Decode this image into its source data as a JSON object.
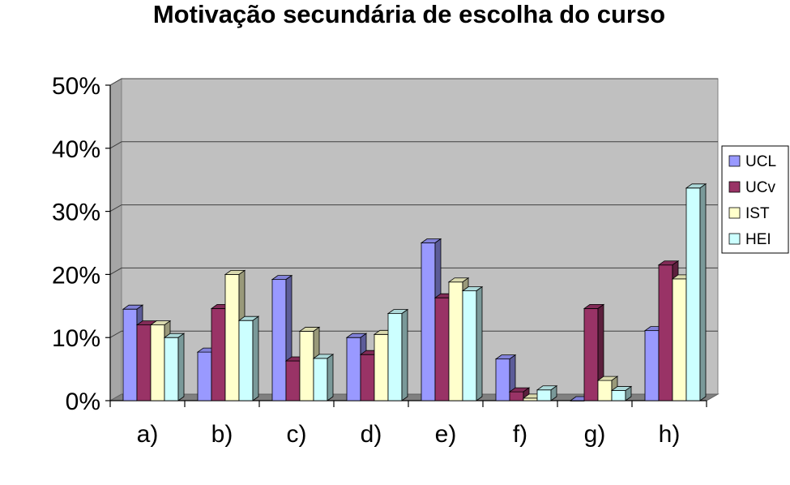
{
  "chart_data": {
    "type": "bar",
    "title": "Motivação secundária de escolha do curso",
    "xlabel": "",
    "ylabel": "",
    "categories": [
      "a)",
      "b)",
      "c)",
      "d)",
      "e)",
      "f)",
      "g)",
      "h)"
    ],
    "y_ticks": [
      "0%",
      "10%",
      "20%",
      "30%",
      "40%",
      "50%"
    ],
    "ylim": [
      0,
      50
    ],
    "grid": true,
    "legend_position": "right",
    "series": [
      {
        "name": "UCL",
        "color": "#9999ff",
        "values": [
          14.5,
          7.7,
          19.2,
          10.0,
          25.0,
          6.6,
          0.0,
          11.1
        ]
      },
      {
        "name": "UCv",
        "color": "#993366",
        "values": [
          12.0,
          14.6,
          6.3,
          7.3,
          16.3,
          1.4,
          14.6,
          21.5
        ]
      },
      {
        "name": "IST",
        "color": "#ffffcc",
        "values": [
          12.0,
          20.0,
          11.0,
          10.5,
          18.8,
          0.4,
          3.2,
          19.3
        ]
      },
      {
        "name": "HEI",
        "color": "#ccffff",
        "values": [
          10.0,
          12.7,
          6.7,
          13.8,
          17.4,
          1.7,
          1.6,
          33.7
        ]
      }
    ]
  }
}
